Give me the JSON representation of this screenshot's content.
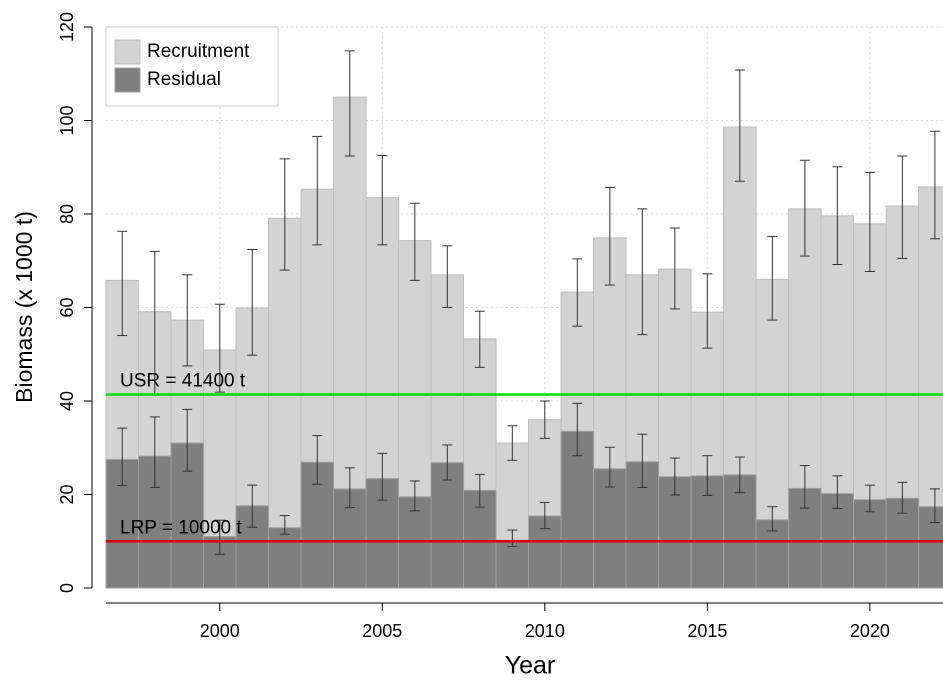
{
  "chart_data": {
    "type": "bar",
    "x_label": "Year",
    "y_label": "Biomass (x 1000 t)",
    "x": [
      1997,
      1998,
      1999,
      2000,
      2001,
      2002,
      2003,
      2004,
      2005,
      2006,
      2007,
      2008,
      2009,
      2010,
      2011,
      2012,
      2013,
      2014,
      2015,
      2016,
      2017,
      2018,
      2019,
      2020,
      2021,
      2022
    ],
    "series": [
      {
        "name": "Recruitment",
        "color": "#d3d3d3",
        "values": [
          65.8,
          59.1,
          57.3,
          50.9,
          59.9,
          79.1,
          85.3,
          105,
          83.5,
          74.3,
          67,
          53.3,
          31,
          36,
          63.3,
          74.9,
          67,
          68.2,
          59,
          98.6,
          66,
          81.1,
          79.6,
          77.9,
          81.7,
          85.8
        ],
        "lower": [
          54,
          41.5,
          47.5,
          41.9,
          49.8,
          68,
          73.4,
          92.4,
          73.4,
          65.8,
          60,
          47.2,
          27.3,
          32,
          56,
          64.8,
          54.2,
          59.7,
          51.3,
          87,
          57.3,
          71,
          69.2,
          67.7,
          70.5,
          74.7
        ],
        "upper": [
          76.3,
          72,
          67,
          60.7,
          72.4,
          91.8,
          96.6,
          114.9,
          92.5,
          82.3,
          73.2,
          59.2,
          34.7,
          40,
          70.4,
          85.7,
          81.1,
          77,
          67.2,
          110.8,
          75.2,
          91.5,
          90.1,
          88.9,
          92.4,
          97.7
        ]
      },
      {
        "name": "Residual",
        "color": "#7f7f7f",
        "values": [
          27.5,
          28.2,
          31,
          11,
          17.6,
          12.9,
          26.9,
          21.2,
          23.4,
          19.5,
          26.8,
          20.9,
          10.2,
          15.4,
          33.5,
          25.5,
          27,
          23.8,
          24,
          24.2,
          14.6,
          21.3,
          20.2,
          18.9,
          19.2,
          17.4
        ],
        "lower": [
          21.9,
          21.5,
          25,
          7.2,
          13,
          11.5,
          22.2,
          17.2,
          18.8,
          16.5,
          23.1,
          17.3,
          8.9,
          12.7,
          28.3,
          21.6,
          21.5,
          19.9,
          19.8,
          20.4,
          12.2,
          17.1,
          17,
          16.3,
          16,
          14
        ],
        "upper": [
          34.2,
          36.6,
          38.2,
          14.5,
          22,
          15.5,
          32.6,
          25.7,
          28.8,
          22.9,
          30.6,
          24.3,
          12.4,
          18.3,
          39.5,
          30.1,
          32.9,
          27.8,
          28.3,
          28,
          17.4,
          26.2,
          24,
          22,
          22.6,
          21.2
        ]
      }
    ],
    "reference_lines": [
      {
        "value": 41.4,
        "label": "USR = 41400 t",
        "color": "#00e000"
      },
      {
        "value": 10,
        "label": "LRP = 10000 t",
        "color": "#e00000"
      }
    ],
    "xlim": [
      1996.5,
      2022.25
    ],
    "xticks": [
      2000,
      2005,
      2010,
      2015,
      2020
    ],
    "ylim": [
      0,
      120
    ],
    "yticks": [
      0,
      20,
      40,
      60,
      80,
      100,
      120
    ],
    "grid": true,
    "legend": "top-left"
  }
}
